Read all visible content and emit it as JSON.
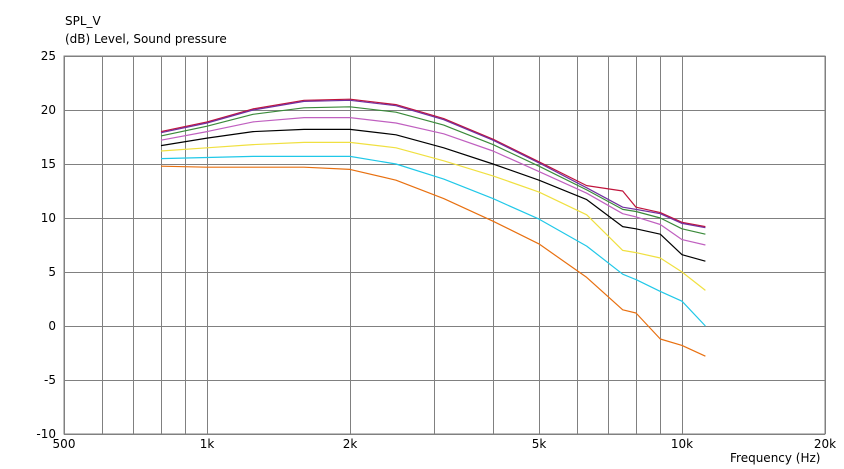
{
  "chart_data": {
    "type": "line",
    "ylabel_name": "SPL_V",
    "ylabel_unit": "(dB)  Level, Sound pressure",
    "xlabel": "Frequency  (Hz)",
    "x_scale": "log",
    "xlim": [
      500,
      20000
    ],
    "ylim": [
      -10,
      25
    ],
    "grid": true,
    "legend": "none",
    "y_ticks": [
      "25",
      "20",
      "15",
      "10",
      "5",
      "0",
      "-5",
      "-10"
    ],
    "y_tick_values": [
      25,
      20,
      15,
      10,
      5,
      0,
      -5,
      -10
    ],
    "x_ticks": [
      "500",
      "1k",
      "2k",
      "5k",
      "10k",
      "20k"
    ],
    "x_tick_values": [
      500,
      1000,
      2000,
      5000,
      10000,
      20000
    ],
    "x_minor_gridlines": [
      600,
      700,
      800,
      900,
      3000,
      4000,
      6000,
      7000,
      8000,
      9000
    ],
    "x": [
      800,
      1000,
      1250,
      1600,
      2000,
      2500,
      3150,
      4000,
      5000,
      6300,
      7500,
      8000,
      9000,
      10000,
      11200
    ],
    "series": [
      {
        "color": "#c0143c",
        "values": [
          18.0,
          18.9,
          20.1,
          20.9,
          21.0,
          20.5,
          19.2,
          17.3,
          15.2,
          13.0,
          12.5,
          11.0,
          10.5,
          9.6,
          9.2
        ]
      },
      {
        "color": "#7030a0",
        "values": [
          17.9,
          18.8,
          20.0,
          20.8,
          20.9,
          20.4,
          19.1,
          17.2,
          15.1,
          12.8,
          11.0,
          10.8,
          10.4,
          9.5,
          9.1
        ]
      },
      {
        "color": "#3a8a3a",
        "values": [
          17.6,
          18.5,
          19.6,
          20.2,
          20.3,
          19.8,
          18.6,
          16.8,
          14.8,
          12.6,
          10.8,
          10.6,
          10.0,
          9.0,
          8.5
        ]
      },
      {
        "color": "#c060c0",
        "values": [
          17.2,
          18.0,
          18.9,
          19.3,
          19.3,
          18.8,
          17.8,
          16.2,
          14.3,
          12.3,
          10.4,
          10.1,
          9.4,
          8.0,
          7.5
        ]
      },
      {
        "color": "#000000",
        "values": [
          16.7,
          17.4,
          18.0,
          18.2,
          18.2,
          17.7,
          16.5,
          15.0,
          13.5,
          11.7,
          9.2,
          9.0,
          8.5,
          6.6,
          6.0
        ]
      },
      {
        "color": "#f0e040",
        "values": [
          16.2,
          16.5,
          16.8,
          17.0,
          17.0,
          16.5,
          15.3,
          13.9,
          12.4,
          10.3,
          7.0,
          6.8,
          6.3,
          5.0,
          3.3
        ]
      },
      {
        "color": "#20c8e8",
        "values": [
          15.5,
          15.6,
          15.7,
          15.7,
          15.7,
          15.0,
          13.6,
          11.8,
          9.9,
          7.4,
          4.8,
          4.3,
          3.2,
          2.3,
          0.0
        ]
      },
      {
        "color": "#e87010",
        "values": [
          14.8,
          14.7,
          14.7,
          14.7,
          14.5,
          13.5,
          11.8,
          9.7,
          7.6,
          4.5,
          1.5,
          1.2,
          -1.2,
          -1.8,
          -2.8
        ]
      }
    ]
  }
}
